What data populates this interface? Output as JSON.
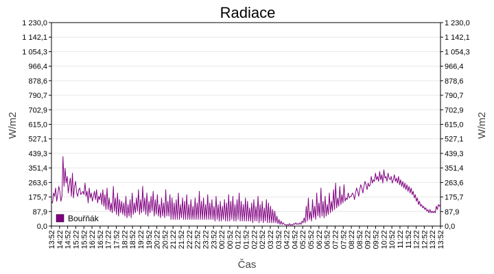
{
  "chart_data": {
    "type": "line",
    "title": "Radiace",
    "xlabel": "Čas",
    "ylabel": "W/m2",
    "ylabel_right": "W/m2",
    "ylim": [
      0,
      1230
    ],
    "y_ticks": [
      "0,0",
      "87,9",
      "175,7",
      "263,6",
      "351,4",
      "439,3",
      "527,1",
      "615,0",
      "702,9",
      "790,7",
      "878,6",
      "966,4",
      "1 054,3",
      "1 142,1",
      "1 230,0"
    ],
    "x_ticks": [
      "13:52",
      "14:22",
      "14:52",
      "15:22",
      "15:52",
      "16:22",
      "16:52",
      "17:22",
      "17:52",
      "18:22",
      "18:52",
      "19:22",
      "19:52",
      "20:22",
      "20:52",
      "21:22",
      "21:52",
      "22:22",
      "22:52",
      "23:22",
      "23:52",
      "00:22",
      "00:52",
      "01:22",
      "01:52",
      "02:22",
      "02:52",
      "03:22",
      "03:52",
      "04:22",
      "04:52",
      "05:22",
      "05:52",
      "06:22",
      "06:52",
      "07:22",
      "07:52",
      "08:22",
      "08:52",
      "09:22",
      "09:52",
      "10:22",
      "10:52",
      "11:22",
      "11:52",
      "12:22",
      "12:52",
      "13:22",
      "13:52"
    ],
    "grid": true,
    "legend_position": "bottom-left",
    "series": [
      {
        "name": "Bouřňák",
        "color": "#800080",
        "values": [
          150,
          140,
          200,
          180,
          230,
          150,
          190,
          240,
          210,
          150,
          180,
          420,
          240,
          350,
          260,
          300,
          200,
          250,
          290,
          180,
          320,
          170,
          240,
          270,
          200,
          180,
          220,
          230,
          190,
          200,
          210,
          190,
          260,
          180,
          210,
          140,
          230,
          170,
          200,
          150,
          180,
          210,
          160,
          220,
          140,
          180,
          160,
          200,
          130,
          220,
          120,
          190,
          100,
          230,
          100,
          170,
          90,
          140,
          80,
          240,
          90,
          170,
          70,
          200,
          60,
          160,
          80,
          150,
          70,
          140,
          60,
          180,
          50,
          130,
          60,
          160,
          50,
          200,
          70,
          140,
          80,
          170,
          90,
          220,
          70,
          160,
          80,
          240,
          90,
          170,
          70,
          200,
          60,
          150,
          80,
          180,
          90,
          210,
          60,
          160,
          70,
          190,
          60,
          130,
          50,
          170,
          60,
          140,
          50,
          220,
          60,
          150,
          60,
          190,
          40,
          170,
          40,
          140,
          40,
          160,
          40,
          200,
          40,
          130,
          50,
          170,
          40,
          150,
          40,
          190,
          40,
          130,
          40,
          160,
          40,
          120,
          40,
          170,
          40,
          140,
          40,
          210,
          40,
          150,
          40,
          170,
          40,
          130,
          40,
          190,
          40,
          140,
          40,
          160,
          40,
          120,
          30,
          180,
          40,
          130,
          30,
          150,
          30,
          120,
          40,
          160,
          30,
          140,
          30,
          190,
          30,
          150,
          40,
          180,
          30,
          130,
          30,
          160,
          40,
          200,
          30,
          150,
          30,
          130,
          30,
          170,
          30,
          150,
          30,
          110,
          30,
          140,
          20,
          160,
          30,
          120,
          30,
          180,
          20,
          130,
          30,
          150,
          20,
          110,
          30,
          160,
          20,
          140,
          20,
          120,
          20,
          100,
          20,
          90,
          20,
          60,
          15,
          40,
          10,
          30,
          10,
          20,
          10,
          10,
          5,
          10,
          5,
          15,
          5,
          10,
          5,
          15,
          10,
          20,
          10,
          15,
          10,
          20,
          10,
          30,
          20,
          50,
          20,
          120,
          30,
          170,
          40,
          90,
          30,
          160,
          50,
          120,
          40,
          200,
          60,
          140,
          50,
          230,
          60,
          150,
          50,
          180,
          60,
          130,
          70,
          200,
          80,
          150,
          90,
          220,
          100,
          260,
          110,
          170,
          120,
          240,
          130,
          190,
          140,
          250,
          150,
          170,
          160,
          200,
          170,
          180,
          180,
          200,
          190,
          160,
          200,
          230,
          210,
          180,
          220,
          250,
          230,
          200,
          240,
          270,
          250,
          220,
          260,
          240,
          250,
          300,
          260,
          280,
          270,
          320,
          280,
          300,
          270,
          330,
          280,
          310,
          260,
          340,
          290,
          300,
          270,
          320,
          290,
          280,
          300,
          260,
          280,
          310,
          270,
          290,
          260,
          300,
          250,
          280,
          240,
          270,
          230,
          260,
          220,
          250,
          210,
          240,
          200,
          230,
          190,
          210,
          170,
          190,
          150,
          170,
          130,
          150,
          120,
          130,
          110,
          120,
          100,
          110,
          90,
          100,
          80,
          100,
          80,
          90,
          80,
          90,
          80,
          120,
          100,
          130,
          120,
          130
        ]
      }
    ]
  }
}
